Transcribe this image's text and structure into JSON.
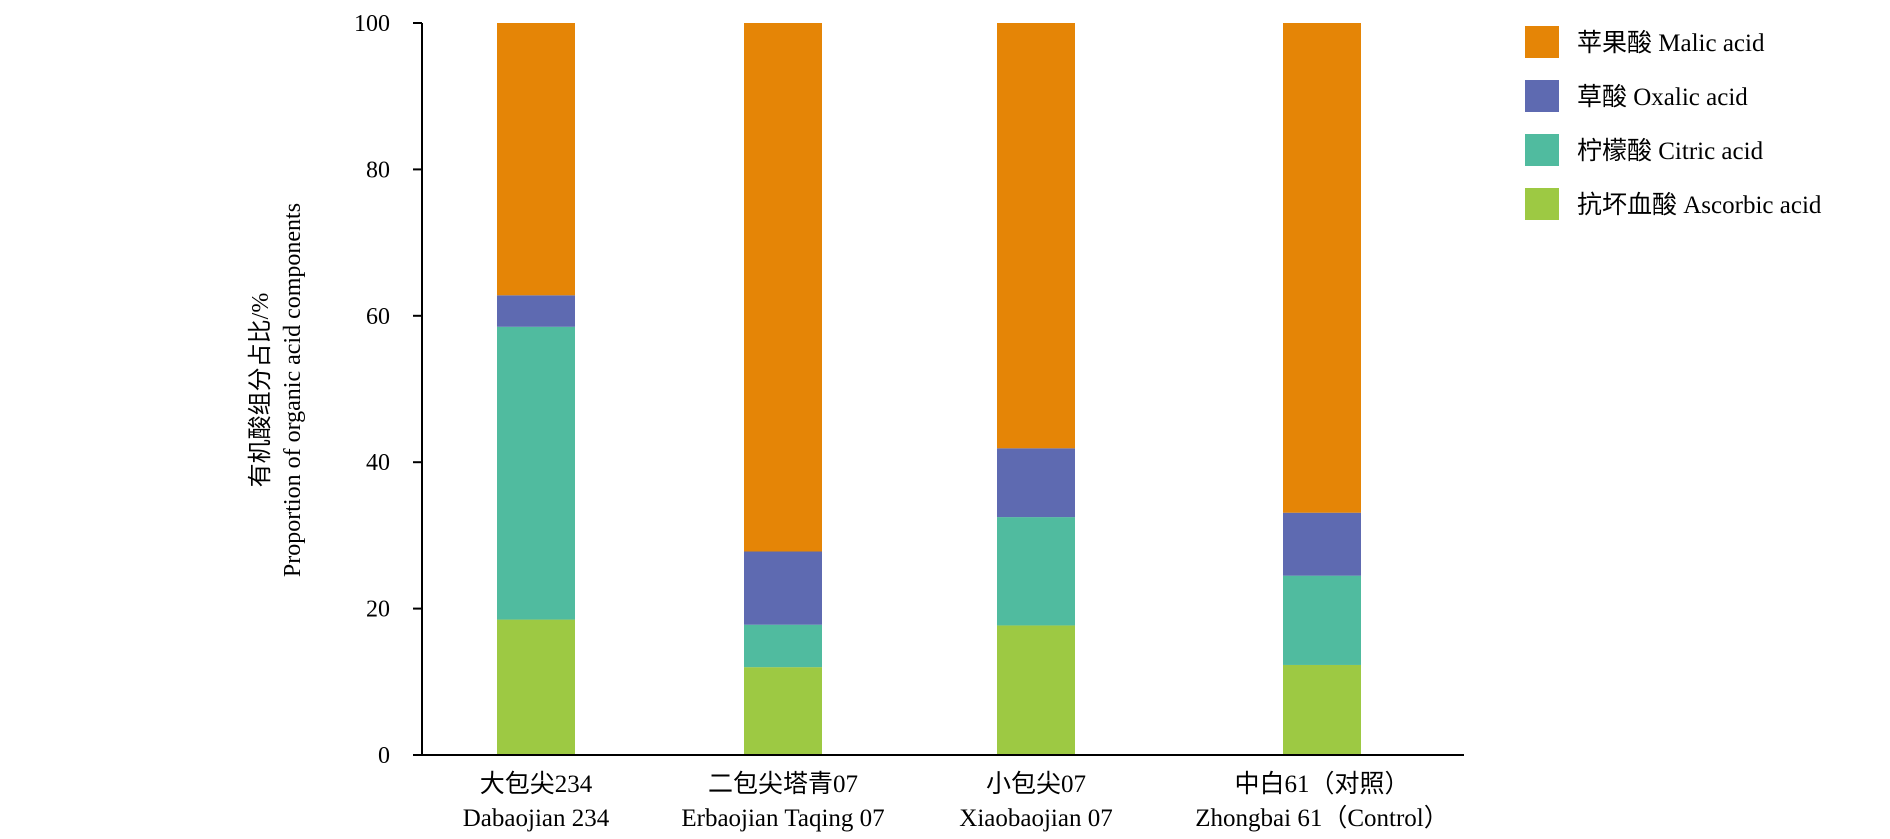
{
  "chart_data": {
    "type": "bar",
    "stacked": true,
    "categories": [
      {
        "zh": "大包尖234",
        "en": "Dabaojian 234"
      },
      {
        "zh": "二包尖塔青07",
        "en": "Erbaojian Taqing 07"
      },
      {
        "zh": "小包尖07",
        "en": "Xiaobaojian 07"
      },
      {
        "zh": "中白61（对照）",
        "en": "Zhongbai 61（Control）"
      }
    ],
    "series": [
      {
        "name": "抗坏血酸 Ascorbic acid",
        "color": "#9dc943",
        "values": [
          18.5,
          12.0,
          17.7,
          12.3
        ]
      },
      {
        "name": "柠檬酸 Citric acid",
        "color": "#50bb9f",
        "values": [
          40.0,
          5.8,
          14.8,
          12.2
        ]
      },
      {
        "name": "草酸 Oxalic acid",
        "color": "#5e6ab1",
        "values": [
          4.3,
          10.0,
          9.4,
          8.6
        ]
      },
      {
        "name": "苹果酸 Malic acid",
        "color": "#e58506",
        "values": [
          37.2,
          72.2,
          58.1,
          66.9
        ]
      }
    ],
    "legend_order": [
      3,
      2,
      1,
      0
    ],
    "legend_position": "top-right",
    "ylabel_zh": "有机酸组分占比/%",
    "ylabel_en": "Proportion of organic acid components",
    "ylim": [
      0,
      100
    ],
    "yticks": [
      0,
      20,
      40,
      60,
      80,
      100
    ],
    "grid": false
  }
}
